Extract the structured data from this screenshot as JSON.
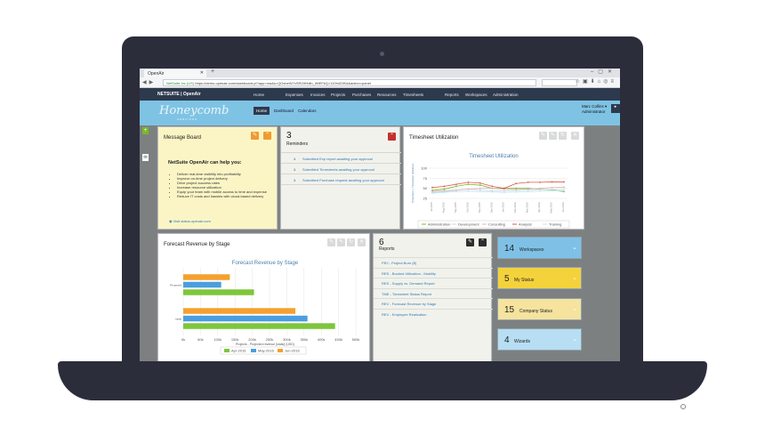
{
  "browser": {
    "tab_title": "OpenAir",
    "url_secure_label": "NetSuite Inc (US)",
    "url": "https://demo.openair.com/dashboard.pl?app=ma&s=QOvbeW7vSRZrfHdlb_WtEFkQ=110h423Kd&action=panel"
  },
  "topnav": {
    "logo": "NETSUITE | OpenAir",
    "items": [
      "Home",
      "Expenses",
      "Invoices",
      "Projects",
      "Purchases",
      "Resources",
      "Timesheets",
      "Reports",
      "Workspaces",
      "Administration"
    ]
  },
  "subbar": {
    "brand": "Honeycomb",
    "brand_sub": "SERVICES",
    "tabs": [
      "Home",
      "Dashboard",
      "Calendars"
    ],
    "user_name": "Marc Collins ▾",
    "user_role": "Administrator"
  },
  "message_board": {
    "title": "Message Board",
    "heading": "NetSuite OpenAir can help you:",
    "items": [
      "Deliver real-time visibility into profitability",
      "Improve on-time project delivery",
      "Drive project success rates",
      "Increase resource utilization",
      "Equip your team with mobile access to time and expense",
      "Reduce IT costs and hassles with cloud-based delivery"
    ],
    "link": "Visit status.openair.com"
  },
  "reminders": {
    "count": "3",
    "title": "Reminders",
    "items": [
      {
        "n": "1",
        "text": "Submitted Exp report awaiting your approval"
      },
      {
        "n": "1",
        "text": "Submitted Timesheets awaiting your approval"
      },
      {
        "n": "1",
        "text": "Submitted Purchase request awaiting your approval"
      }
    ]
  },
  "timesheet": {
    "title": "Timesheet Utilization"
  },
  "forecast": {
    "title": "Forecast Revenue by Stage"
  },
  "reports": {
    "count": "6",
    "title": "Reports",
    "items": [
      "PRJ - Project Burn ($)",
      "RES - Booked Utilization - Mobility",
      "RES - Supply vs. Demand Report",
      "TME - Timesheet Status Report",
      "REV - Forecast Revenue by Stage",
      "REV - Employee Realization"
    ]
  },
  "tiles": [
    {
      "n": "14",
      "label": "Workspaces",
      "color": "#7fc1e6"
    },
    {
      "n": "5",
      "label": "My Status",
      "color": "#f4d23c"
    },
    {
      "n": "15",
      "label": "Company Status",
      "color": "#f5e39e"
    },
    {
      "n": "4",
      "label": "Wizards",
      "color": "#b7def2"
    }
  ],
  "chart_data": [
    {
      "type": "line",
      "title": "Timesheet Utilization",
      "xlabel": "",
      "ylabel": "Timesheet + Timesheet utilization",
      "x": [
        "Jul-2015",
        "Aug-2015",
        "Sep-2015",
        "Oct-2015",
        "Nov-2015",
        "Dec-2015",
        "Jan-2016",
        "Feb-2016",
        "Mar-2016",
        "Apr-2016",
        "May-2016",
        "Jun-2016"
      ],
      "ylim": [
        25,
        100
      ],
      "yticks": [
        "100",
        "75",
        "50",
        "25"
      ],
      "series": [
        {
          "name": "Administration",
          "color": "#7ab82a",
          "values": [
            45,
            48,
            55,
            60,
            58,
            50,
            50,
            50,
            50,
            48,
            46,
            42
          ]
        },
        {
          "name": "Development",
          "color": "#c9d9ea",
          "values": [
            40,
            42,
            45,
            48,
            46,
            44,
            44,
            45,
            46,
            47,
            47,
            47
          ]
        },
        {
          "name": "Consulting",
          "color": "#e4b5b5",
          "values": [
            42,
            44,
            46,
            48,
            50,
            50,
            48,
            47,
            48,
            50,
            52,
            53
          ]
        },
        {
          "name": "Analysis",
          "color": "#d95b4b",
          "values": [
            52,
            55,
            60,
            65,
            63,
            55,
            50,
            62,
            65,
            65,
            66,
            66
          ]
        },
        {
          "name": "Training",
          "color": "#b9e7f5",
          "values": [
            38,
            40,
            42,
            43,
            42,
            41,
            40,
            41,
            42,
            43,
            44,
            44
          ]
        }
      ]
    },
    {
      "type": "bar",
      "title": "Forecast Revenue by Stage",
      "xlabel": "Projects - Projected revenue [static] (USD)",
      "categories": [
        "Proposed",
        "Initial"
      ],
      "xlim": [
        0,
        500000
      ],
      "xticks": [
        "0k",
        "50k",
        "100k",
        "150k",
        "200k",
        "250k",
        "300k",
        "350k",
        "400k",
        "450k",
        "500k"
      ],
      "series": [
        {
          "name": "Apr-2016",
          "color": "#7ec63b",
          "values": [
            205000,
            440000
          ]
        },
        {
          "name": "May-2016",
          "color": "#4a9ee0",
          "values": [
            110000,
            360000
          ]
        },
        {
          "name": "Jun-2016",
          "color": "#f5a02f",
          "values": [
            135000,
            325000
          ]
        }
      ]
    }
  ]
}
